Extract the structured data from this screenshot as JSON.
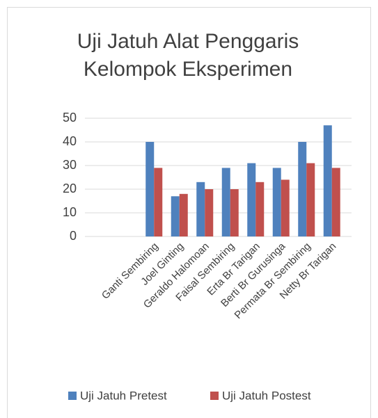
{
  "chart_data": {
    "type": "bar",
    "title": "Uji Jatuh Alat Penggaris Kelompok Eksperimen",
    "categories": [
      "Ganti Sembiring",
      "Joel Ginting",
      "Geraldo Halomoan",
      "Faisal Sembiring",
      "Erta Br Tarigan",
      "Berti Br Gurusinga",
      "Permata Br Sembiring",
      "Netty Br Tarigan"
    ],
    "series": [
      {
        "name": "Uji Jatuh Pretest",
        "color": "#4f81bd",
        "values": [
          40,
          17,
          23,
          29,
          31,
          29,
          40,
          47
        ]
      },
      {
        "name": "Uji Jatuh Postest",
        "color": "#c0504d",
        "values": [
          29,
          18,
          20,
          20,
          23,
          24,
          31,
          29
        ]
      }
    ],
    "ylim": [
      0,
      50
    ],
    "yticks": [
      0,
      10,
      20,
      30,
      40,
      50
    ],
    "grid": true,
    "legend": "bottom"
  }
}
